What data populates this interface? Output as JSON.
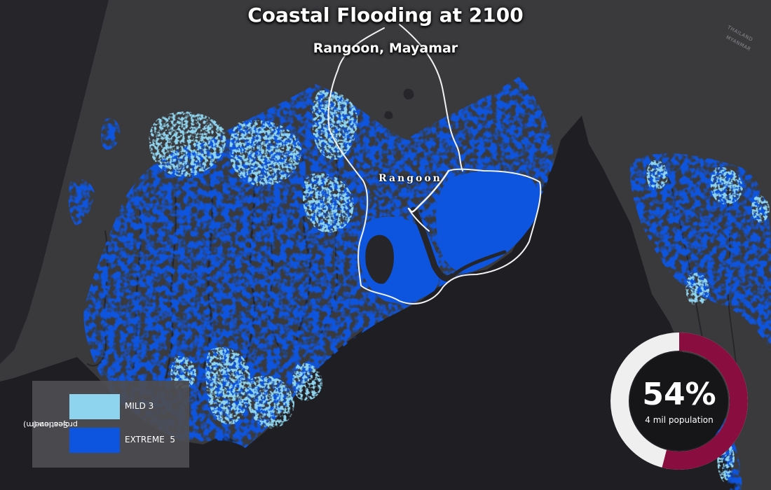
{
  "map": {
    "title": "Coastal Flooding at 2100",
    "subtitle": "Rangoon, Mayamar",
    "city_label": "Rangoon",
    "border_labels": [
      "THAILAND",
      "MYANMAR"
    ]
  },
  "legend": {
    "heading_line1": "Sea level",
    "heading_line2": "projection (m)",
    "items": [
      {
        "label": "MILD",
        "value": "3",
        "color": "#8fd4ee"
      },
      {
        "label": "EXTREME",
        "value": "5",
        "color": "#0d55de"
      }
    ]
  },
  "population": {
    "percent": 54,
    "percent_label": "54%",
    "caption": "4 mil population"
  },
  "colors": {
    "land": "#3a3a3d",
    "water": "#1f1f23",
    "river": "#26262a",
    "mild": "#8fd4ee",
    "extreme": "#0d55de",
    "boundary": "#f2f2f2",
    "donut_primary": "#8a0d3f",
    "donut_secondary": "#efefef"
  }
}
